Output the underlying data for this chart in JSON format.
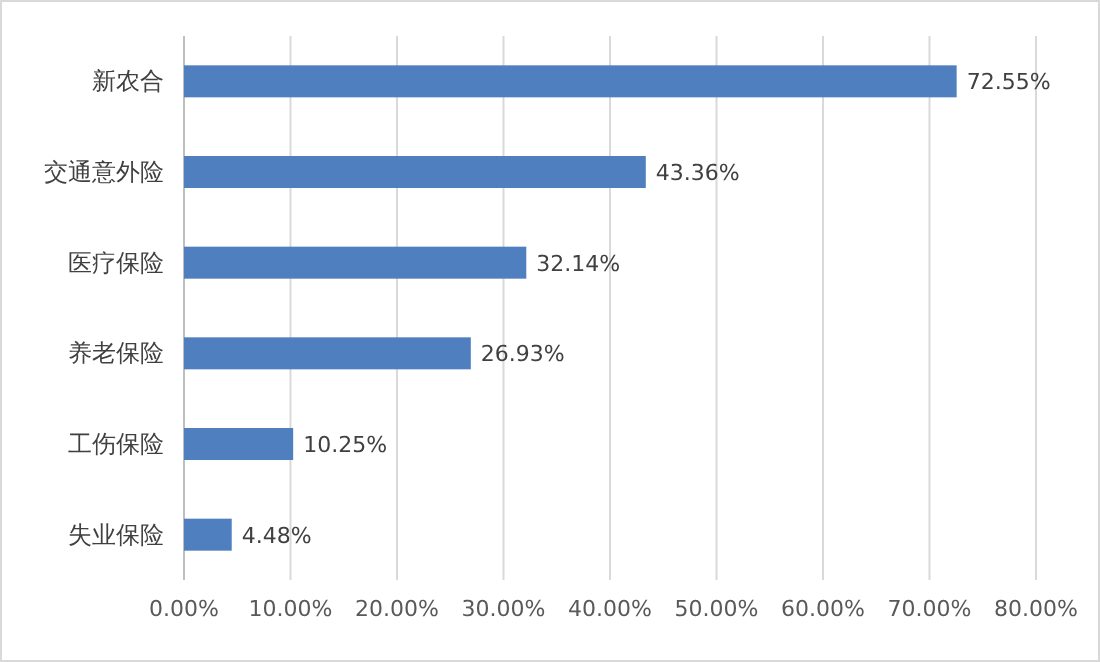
{
  "chart_data": {
    "type": "bar",
    "orientation": "horizontal",
    "categories": [
      "新农合",
      "交通意外险",
      "医疗保险",
      "养老保险",
      "工伤保险",
      "失业保险"
    ],
    "values": [
      72.55,
      43.36,
      32.14,
      26.93,
      10.25,
      4.48
    ],
    "value_labels": [
      "72.55%",
      "43.36%",
      "32.14%",
      "26.93%",
      "10.25%",
      "4.48%"
    ],
    "color": "#4f7fbf",
    "xlim": [
      0,
      80
    ],
    "xticks": [
      {
        "value": 0,
        "label": "0.00%"
      },
      {
        "value": 10,
        "label": "10.00%"
      },
      {
        "value": 20,
        "label": "20.00%"
      },
      {
        "value": 30,
        "label": "30.00%"
      },
      {
        "value": 40,
        "label": "40.00%"
      },
      {
        "value": 50,
        "label": "50.00%"
      },
      {
        "value": 60,
        "label": "60.00%"
      },
      {
        "value": 70,
        "label": "70.00%"
      },
      {
        "value": 80,
        "label": "80.00%"
      }
    ],
    "grid": "x"
  }
}
